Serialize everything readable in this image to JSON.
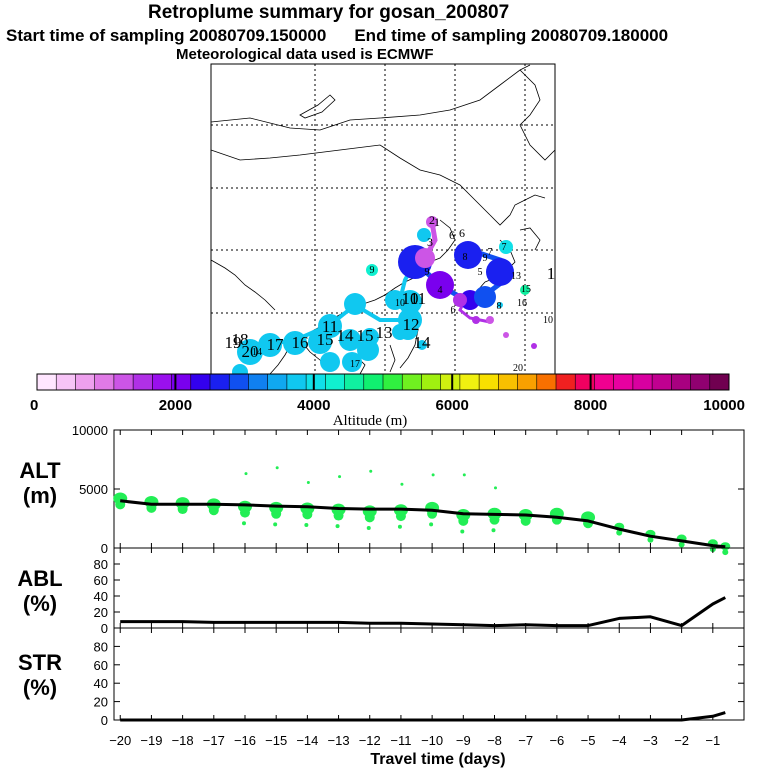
{
  "header": {
    "title": "Retroplume summary for gosan_200807",
    "start_label": "Start time of sampling 20080709.150000",
    "end_label": "End time of sampling 20080709.180000",
    "met_label": "Meteorological data used is ECMWF"
  },
  "colorbar": {
    "ticks": [
      "0",
      "2000",
      "4000",
      "6000",
      "8000",
      "10000"
    ],
    "label": "Altitude (m)",
    "colors": [
      "#ffe6ff",
      "#f7c4f7",
      "#eea0ee",
      "#e07ae6",
      "#cc55e6",
      "#b030e6",
      "#9a10ee",
      "#7a00ee",
      "#3300ee",
      "#1a20f0",
      "#1050f0",
      "#1080f0",
      "#10a8f0",
      "#10c8f0",
      "#10e0e8",
      "#10f0d0",
      "#10f0a0",
      "#10f070",
      "#30f040",
      "#70f020",
      "#a0f010",
      "#d0f010",
      "#f0f010",
      "#f8e000",
      "#f8c000",
      "#f8a000",
      "#f87000",
      "#f02020",
      "#f00060",
      "#f00090",
      "#e800a0",
      "#d800a0",
      "#c00090",
      "#a80080",
      "#900070",
      "#700050"
    ]
  },
  "map": {
    "plume_labels": [
      "2",
      "1",
      "3",
      "6",
      "6",
      "7",
      "8",
      "9",
      "9",
      "4",
      "7",
      "13",
      "5",
      "15",
      "16",
      "6",
      "8",
      "10",
      "11",
      "11",
      "10",
      "12",
      "14",
      "13",
      "15",
      "14",
      "15",
      "16",
      "17",
      "18",
      "19",
      "20",
      "1",
      "14",
      "17",
      "20",
      "9",
      "10"
    ]
  },
  "panels": {
    "alt_label": "ALT\n(m)",
    "abl_label": "ABL\n(%)",
    "str_label": "STR\n(%)",
    "xlabel": "Travel time (days)"
  },
  "chart_data": [
    {
      "type": "line",
      "title": "ALT (m)",
      "x": [
        -20,
        -19,
        -18,
        -17,
        -16,
        -15,
        -14,
        -13,
        -12,
        -11,
        -10,
        -9,
        -8,
        -7,
        -6,
        -5,
        -4,
        -3,
        -2,
        -1,
        -0.6
      ],
      "values": [
        4000,
        3700,
        3700,
        3700,
        3650,
        3550,
        3500,
        3350,
        3300,
        3300,
        3200,
        2900,
        2850,
        2800,
        2600,
        2300,
        1600,
        1000,
        600,
        200,
        100
      ],
      "xlim": [
        -20,
        0
      ],
      "ylim": [
        0,
        10000
      ],
      "yticks": [
        "0",
        "5000",
        "10000"
      ],
      "xticks": [
        "-20",
        "-19",
        "-18",
        "-17",
        "-16",
        "-15",
        "-14",
        "-13",
        "-12",
        "-11",
        "-10",
        "-9",
        "-8",
        "-7",
        "-6",
        "-5",
        "-4",
        "-3",
        "-2",
        "-1"
      ],
      "scatter_y": [
        4200,
        3900,
        3800,
        3700,
        3500,
        3400,
        3350,
        3250,
        3100,
        3200,
        3400,
        2800,
        2900,
        2800,
        2900,
        2600,
        1800,
        1200,
        800,
        400,
        150
      ]
    },
    {
      "type": "line",
      "title": "ABL (%)",
      "x": [
        -20,
        -19,
        -18,
        -17,
        -16,
        -15,
        -14,
        -13,
        -12,
        -11,
        -10,
        -9,
        -8,
        -7,
        -6,
        -5,
        -4,
        -3,
        -2,
        -1,
        -0.6
      ],
      "values": [
        8,
        8,
        8,
        7,
        7,
        7,
        7,
        7,
        6,
        6,
        5,
        4,
        3,
        4,
        3,
        3,
        12,
        14,
        3,
        30,
        38
      ],
      "xlim": [
        -20,
        0
      ],
      "ylim": [
        0,
        100
      ],
      "yticks": [
        "0",
        "20",
        "40",
        "60",
        "80"
      ]
    },
    {
      "type": "line",
      "title": "STR (%)",
      "x": [
        -20,
        -19,
        -18,
        -17,
        -16,
        -15,
        -14,
        -13,
        -12,
        -11,
        -10,
        -9,
        -8,
        -7,
        -6,
        -5,
        -4,
        -3,
        -2,
        -1,
        -0.6
      ],
      "values": [
        0,
        0,
        0,
        0,
        0,
        0,
        0,
        0,
        0,
        0,
        0,
        0,
        0,
        0,
        0,
        0,
        0,
        0,
        0,
        4,
        8
      ],
      "xlim": [
        -20,
        0
      ],
      "ylim": [
        0,
        100
      ],
      "yticks": [
        "0",
        "20",
        "40",
        "60",
        "80"
      ]
    }
  ]
}
